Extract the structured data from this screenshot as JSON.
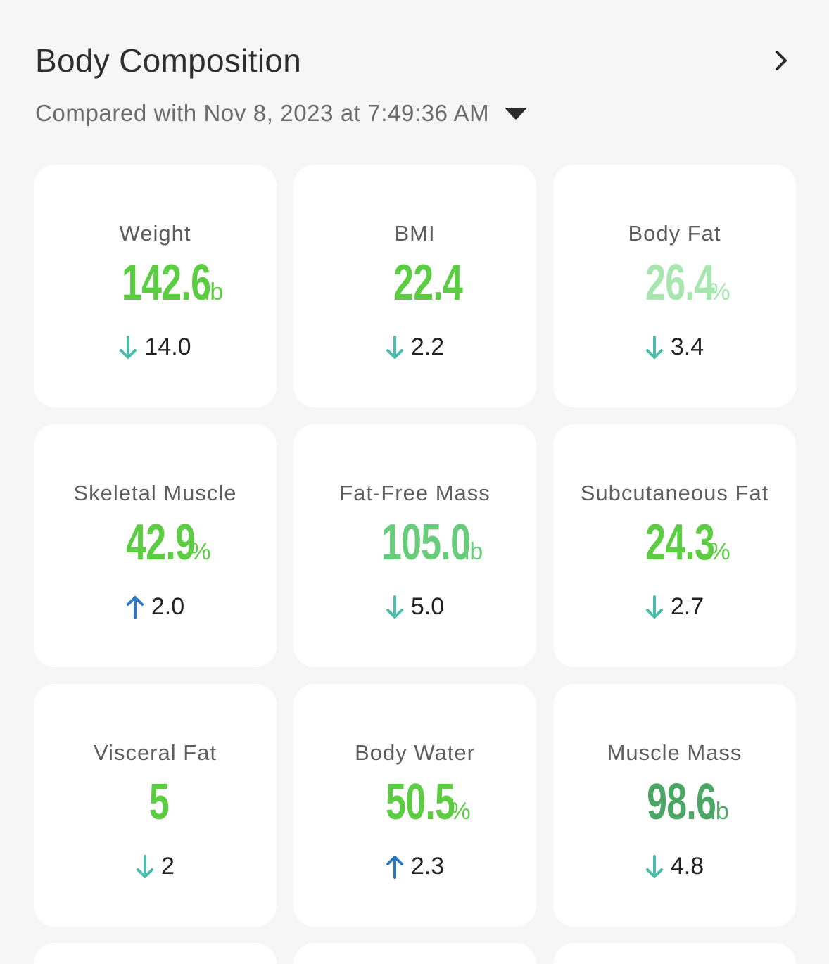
{
  "header": {
    "title": "Body Composition",
    "compare_text": "Compared with Nov 8, 2023 at 7:49:36 AM"
  },
  "colors": {
    "bright_green": "#5ccd43",
    "light_green": "#a8e6b0",
    "mid_green": "#67cd7a",
    "dark_green": "#4ca766",
    "down_arrow": "#4cbdaa",
    "up_arrow": "#2f79c0"
  },
  "metrics": [
    {
      "label": "Weight",
      "value": "142.6",
      "unit": "lb",
      "color": "#5ccd43",
      "delta": "14.0",
      "direction": "down"
    },
    {
      "label": "BMI",
      "value": "22.4",
      "unit": "",
      "color": "#5ccd43",
      "delta": "2.2",
      "direction": "down"
    },
    {
      "label": "Body Fat",
      "value": "26.4",
      "unit": "%",
      "color": "#a8e6b0",
      "delta": "3.4",
      "direction": "down"
    },
    {
      "label": "Skeletal Muscle",
      "value": "42.9",
      "unit": "%",
      "color": "#5ccd43",
      "delta": "2.0",
      "direction": "up"
    },
    {
      "label": "Fat-Free Mass",
      "value": "105.0",
      "unit": "lb",
      "color": "#67cd7a",
      "delta": "5.0",
      "direction": "down"
    },
    {
      "label": "Subcutaneous Fat",
      "value": "24.3",
      "unit": "%",
      "color": "#5ccd43",
      "delta": "2.7",
      "direction": "down"
    },
    {
      "label": "Visceral Fat",
      "value": "5",
      "unit": "",
      "color": "#5ccd43",
      "delta": "2",
      "direction": "down"
    },
    {
      "label": "Body Water",
      "value": "50.5",
      "unit": "%",
      "color": "#5ccd43",
      "delta": "2.3",
      "direction": "up"
    },
    {
      "label": "Muscle Mass",
      "value": "98.6",
      "unit": "lb",
      "color": "#4ca766",
      "delta": "4.8",
      "direction": "down"
    }
  ]
}
